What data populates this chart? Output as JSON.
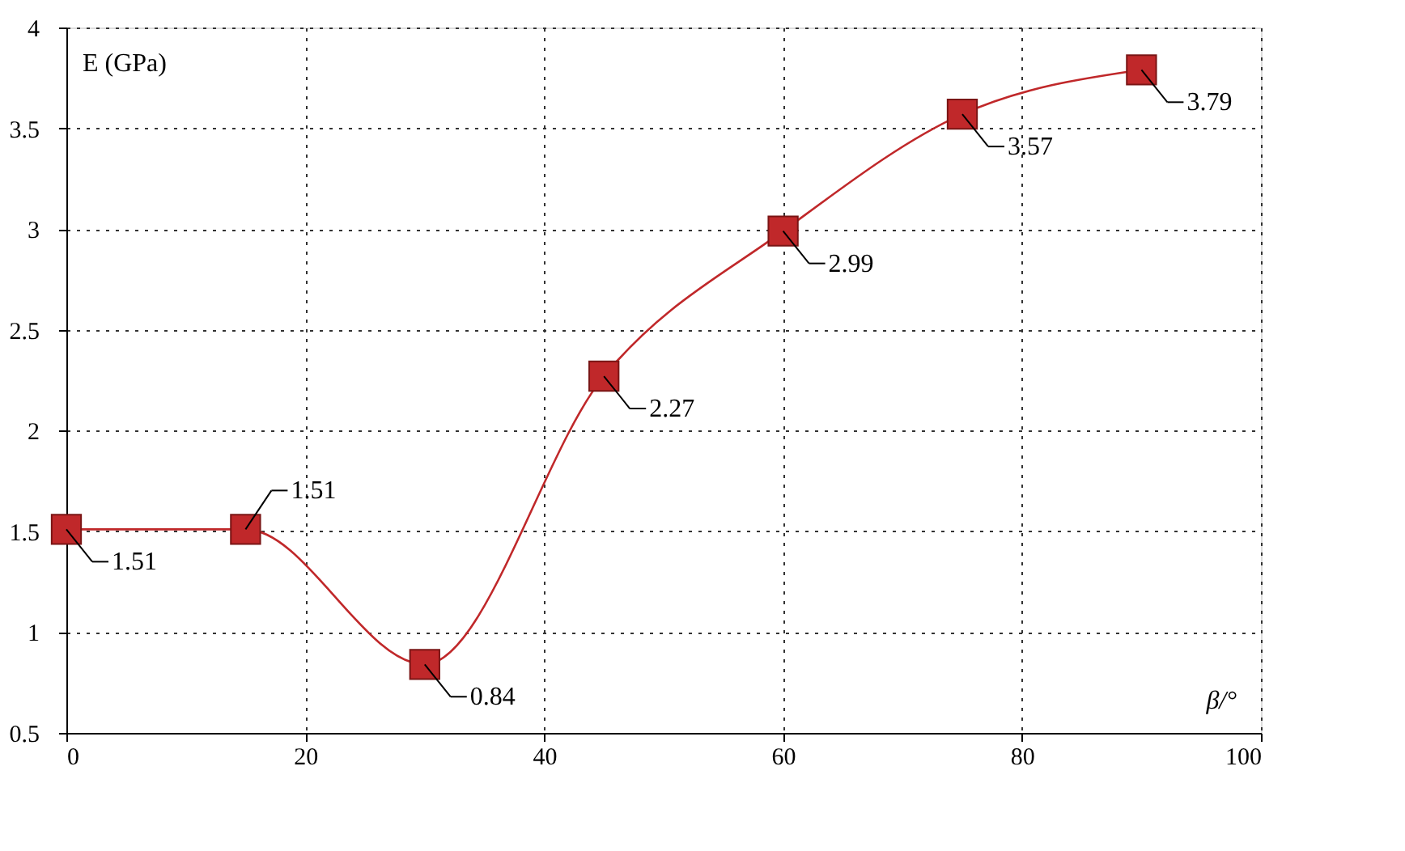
{
  "chart_data": {
    "type": "line",
    "xlabel": "β/°",
    "ylabel": "E (GPa)",
    "x": [
      0,
      15,
      30,
      45,
      60,
      75,
      90
    ],
    "series": [
      {
        "color": "#c0282a",
        "values": [
          1.51,
          1.51,
          0.84,
          2.27,
          2.99,
          3.57,
          3.79
        ]
      }
    ],
    "xlim": [
      0,
      100
    ],
    "xticks": [
      0,
      20,
      40,
      60,
      80,
      100
    ],
    "ylim": [
      0.5,
      4
    ],
    "yticks": [
      0.5,
      1,
      1.5,
      2,
      2.5,
      3,
      3.5,
      4
    ],
    "grid": true,
    "marker": "square",
    "line_style": "solid",
    "data_labels": true
  }
}
